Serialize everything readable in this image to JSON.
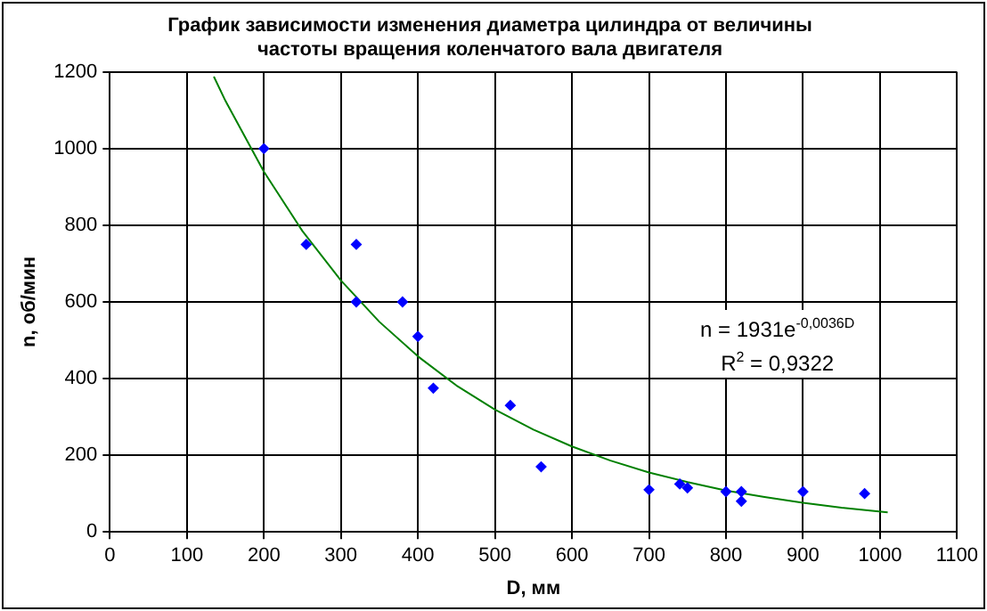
{
  "chart_data": {
    "type": "scatter",
    "title": "График зависимости изменения диаметра цилиндра от величины\nчастоты вращения коленчатого вала двигателя",
    "xlabel": "D, мм",
    "ylabel": "n, об/мин",
    "xlim": [
      0,
      1100
    ],
    "xticks": [
      0,
      100,
      200,
      300,
      400,
      500,
      600,
      700,
      800,
      900,
      1000,
      1100
    ],
    "ylim": [
      0,
      1200
    ],
    "yticks": [
      0,
      200,
      400,
      600,
      800,
      1000,
      1200
    ],
    "grid": true,
    "legend": false,
    "marker": "diamond",
    "annotations": [
      "n = 1931e$^{-0,0036D}$",
      "R$^{2}$ = 0,9322"
    ],
    "series": [
      {
        "color": "#0000ff",
        "x": [
          200,
          255,
          320,
          320,
          380,
          400,
          420,
          520,
          560,
          700,
          740,
          750,
          800,
          820,
          820,
          900,
          980
        ],
        "values": [
          1000,
          750,
          750,
          600,
          600,
          510,
          375,
          330,
          170,
          110,
          125,
          115,
          105,
          105,
          80,
          105,
          100
        ]
      },
      {
        "type": "line",
        "color": "#008000",
        "marker": "none",
        "x": [
          135,
          150,
          200,
          250,
          300,
          350,
          400,
          450,
          500,
          550,
          600,
          650,
          700,
          750,
          800,
          850,
          900,
          950,
          1010
        ],
        "values": [
          1188,
          1125,
          940,
          785,
          656,
          548,
          458,
          382,
          319,
          267,
          223,
          186,
          155,
          130,
          108,
          91,
          76,
          63,
          51
        ]
      }
    ]
  }
}
